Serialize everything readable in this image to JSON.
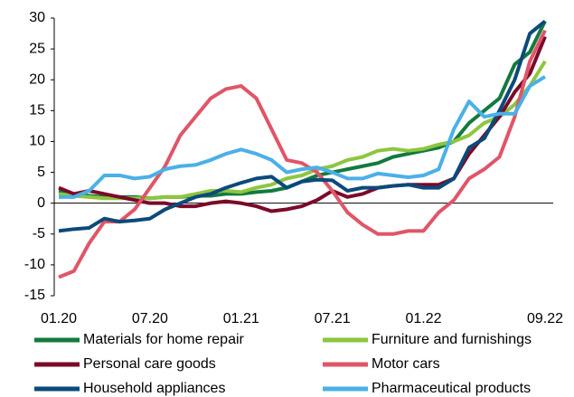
{
  "chart_data": {
    "type": "line",
    "categories": [
      "01.20",
      null,
      null,
      null,
      null,
      null,
      "07.20",
      null,
      null,
      null,
      null,
      null,
      "01.21",
      null,
      null,
      null,
      null,
      null,
      "07.21",
      null,
      null,
      null,
      null,
      null,
      "01.22",
      null,
      null,
      null,
      null,
      null,
      null,
      null,
      "09.22"
    ],
    "series": [
      {
        "name": "Materials for home repair",
        "color": "#137a3e",
        "values": [
          2,
          1.5,
          1.2,
          1,
          1,
          1,
          0.8,
          1,
          1,
          1.2,
          1.2,
          1.5,
          1.5,
          1.8,
          2,
          2.5,
          3.5,
          4.5,
          5,
          5.5,
          6,
          6.5,
          7.5,
          8,
          8.5,
          9,
          10,
          13,
          15,
          17,
          22.5,
          24.5,
          29.5
        ]
      },
      {
        "name": "Furniture and furnishings",
        "color": "#8dc63f",
        "values": [
          1.5,
          1.2,
          1,
          0.8,
          0.8,
          0.8,
          0.8,
          1,
          1,
          1.5,
          2,
          2,
          1.8,
          2.5,
          3,
          4,
          4.5,
          5.5,
          6,
          7,
          7.5,
          8.5,
          8.8,
          8.5,
          8.8,
          9.5,
          10,
          11,
          13,
          14,
          16,
          19,
          23
        ]
      },
      {
        "name": "Personal care goods",
        "color": "#7b0a2a",
        "values": [
          2.5,
          1.5,
          2,
          1.5,
          1,
          0.5,
          0,
          0,
          -0.5,
          -0.5,
          0,
          0.3,
          0,
          -0.5,
          -1.3,
          -1,
          -0.5,
          0.5,
          2,
          1,
          1.5,
          2.5,
          2.8,
          3,
          3,
          3,
          4,
          8,
          11,
          14,
          18,
          21,
          27
        ]
      },
      {
        "name": "Motor cars",
        "color": "#e05568",
        "values": [
          -12,
          -11,
          -6.5,
          -3,
          -3,
          -1,
          2.5,
          6,
          11,
          14,
          17,
          18.5,
          19,
          17,
          12,
          7,
          6.5,
          5,
          2,
          -1.5,
          -3.5,
          -5,
          -5,
          -4.5,
          -4.5,
          -1.5,
          0.5,
          4,
          5.5,
          7.5,
          14,
          23,
          28
        ]
      },
      {
        "name": "Household appliances",
        "color": "#0b4a7a",
        "values": [
          -4.5,
          -4.2,
          -4,
          -2.5,
          -3,
          -2.8,
          -2.5,
          -1,
          0,
          1,
          1.5,
          2.5,
          3.3,
          4,
          4.3,
          2.5,
          3.5,
          3.8,
          3.7,
          2,
          2.5,
          2.5,
          2.8,
          3,
          2.5,
          2.5,
          4,
          9,
          10.5,
          15,
          20,
          27.5,
          29.5
        ]
      },
      {
        "name": "Pharmaceutical products",
        "color": "#4ab0e8",
        "values": [
          1,
          1,
          2,
          4.5,
          4.5,
          4,
          4.3,
          5.5,
          6,
          6.2,
          7,
          8,
          8.7,
          8,
          7,
          5,
          5.5,
          5.8,
          5,
          4,
          4,
          4.8,
          4.5,
          4.2,
          4.5,
          5.5,
          12,
          16.5,
          14,
          14.5,
          14.5,
          19,
          20.5
        ]
      }
    ],
    "ylim": [
      -15,
      30
    ],
    "yticks": [
      -15,
      -10,
      -5,
      0,
      5,
      10,
      15,
      20,
      25,
      30
    ]
  }
}
